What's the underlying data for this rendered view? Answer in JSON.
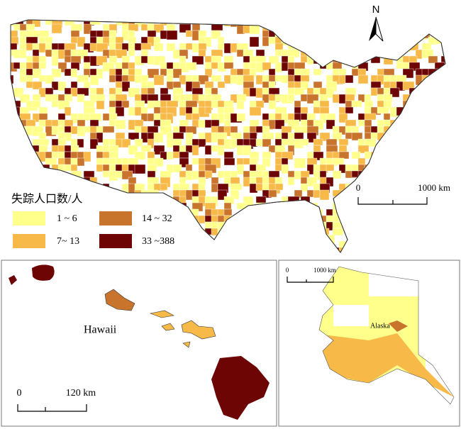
{
  "north": "N",
  "main_scale": {
    "start": "0",
    "end": "1000 km"
  },
  "legend": {
    "title": "失踪人口数/人",
    "items": [
      {
        "label": "1 ~ 6",
        "color": "#ffff8c"
      },
      {
        "label": "7~ 13",
        "color": "#f7b947"
      },
      {
        "label": "14 ~ 32",
        "color": "#c9742c"
      },
      {
        "label": "33 ~388",
        "color": "#6e0505"
      }
    ]
  },
  "hawaii": {
    "label": "Hawaii",
    "scale": {
      "start": "0",
      "end": "120 km"
    }
  },
  "alaska": {
    "label": "Alaska",
    "scale": {
      "start": "0",
      "end": "1000 km"
    }
  }
}
